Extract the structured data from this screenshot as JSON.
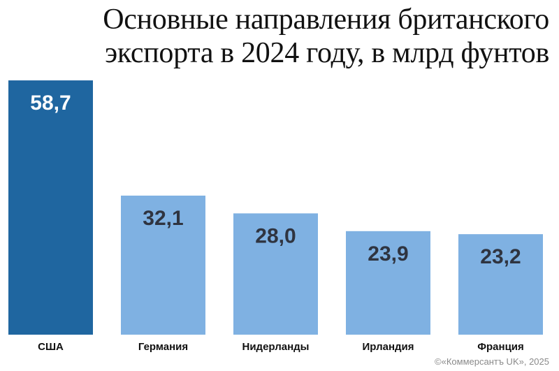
{
  "header": {
    "title_line1": "Основные направления британского",
    "title_line2": "экспорта в 2024 году, в млрд фунтов"
  },
  "chart_data": {
    "type": "bar",
    "title": "Основные направления британского экспорта в 2024 году, в млрд фунтов",
    "categories": [
      "США",
      "Германия",
      "Нидерланды",
      "Ирландия",
      "Франция"
    ],
    "values": [
      58.7,
      32.1,
      28.0,
      23.9,
      23.2
    ],
    "value_labels": [
      "58,7",
      "32,1",
      "28,0",
      "23,9",
      "23,2"
    ],
    "ylim": [
      0,
      60
    ],
    "grid": false,
    "legend": "none",
    "colors": {
      "highlight_bar": "#1f66a0",
      "bar": "#7fb1e2",
      "highlight_label": "#ffffff",
      "label": "#2f3440"
    },
    "highlight_index": 0
  },
  "footer": {
    "copyright": "©«Коммерсантъ UK», 2025"
  }
}
